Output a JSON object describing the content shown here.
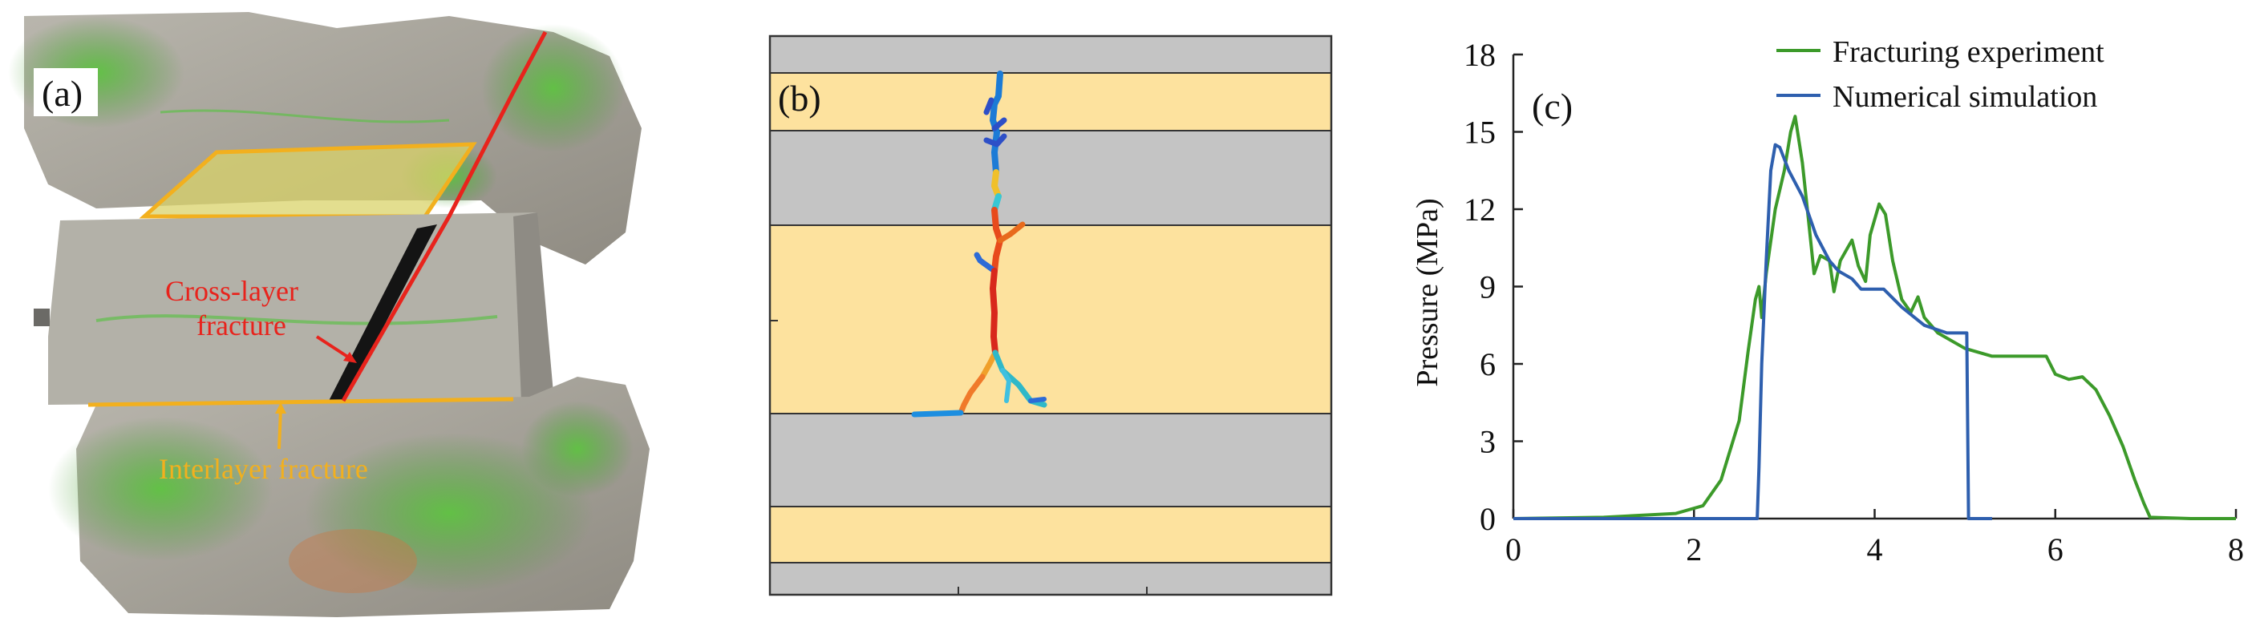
{
  "panel_a": {
    "label": "(a)",
    "annotations": {
      "cross_layer_line1": "Cross-layer",
      "cross_layer_line2": "fracture",
      "interlayer": "Interlayer fracture"
    },
    "colors": {
      "cross_layer": "#e8231c",
      "interlayer": "#f2b01e",
      "rock_green": "#4fae3a",
      "rock_gray": "#a9a79f"
    }
  },
  "panel_b": {
    "label": "(b)",
    "colors": {
      "yellow_layer": "#fde29e",
      "gray_layer": "#c4c4c4",
      "border": "#333333"
    }
  },
  "panel_c": {
    "label": "(c)",
    "chart_data": {
      "type": "line",
      "title": "",
      "xlabel": "",
      "ylabel": "Pressure (MPa)",
      "xlim": [
        0,
        8
      ],
      "ylim": [
        0,
        18
      ],
      "x_ticks": [
        "0",
        "2",
        "4",
        "6",
        "8"
      ],
      "y_ticks": [
        "0",
        "3",
        "6",
        "9",
        "12",
        "15",
        "18"
      ],
      "legend_position": "top-right",
      "series": [
        {
          "name": "Fracturing experiment",
          "color": "#3c9a2a",
          "points": [
            [
              0,
              0
            ],
            [
              1.0,
              0.05
            ],
            [
              1.8,
              0.2
            ],
            [
              2.1,
              0.5
            ],
            [
              2.3,
              1.5
            ],
            [
              2.5,
              3.8
            ],
            [
              2.6,
              6.5
            ],
            [
              2.68,
              8.5
            ],
            [
              2.72,
              9.0
            ],
            [
              2.75,
              7.8
            ],
            [
              2.8,
              9.5
            ],
            [
              2.9,
              12.0
            ],
            [
              3.0,
              13.5
            ],
            [
              3.07,
              15.0
            ],
            [
              3.12,
              15.6
            ],
            [
              3.2,
              13.8
            ],
            [
              3.27,
              11.5
            ],
            [
              3.33,
              9.5
            ],
            [
              3.4,
              10.2
            ],
            [
              3.5,
              10.0
            ],
            [
              3.55,
              8.8
            ],
            [
              3.62,
              10.0
            ],
            [
              3.7,
              10.5
            ],
            [
              3.75,
              10.8
            ],
            [
              3.82,
              9.8
            ],
            [
              3.9,
              9.2
            ],
            [
              3.95,
              11.0
            ],
            [
              4.05,
              12.2
            ],
            [
              4.12,
              11.8
            ],
            [
              4.2,
              10.0
            ],
            [
              4.3,
              8.5
            ],
            [
              4.4,
              8.0
            ],
            [
              4.48,
              8.6
            ],
            [
              4.55,
              7.8
            ],
            [
              4.7,
              7.2
            ],
            [
              5.0,
              6.6
            ],
            [
              5.3,
              6.3
            ],
            [
              5.6,
              6.3
            ],
            [
              5.9,
              6.3
            ],
            [
              6.0,
              5.6
            ],
            [
              6.15,
              5.4
            ],
            [
              6.3,
              5.5
            ],
            [
              6.45,
              5.0
            ],
            [
              6.6,
              4.0
            ],
            [
              6.75,
              2.8
            ],
            [
              6.88,
              1.5
            ],
            [
              6.98,
              0.6
            ],
            [
              7.05,
              0.05
            ],
            [
              7.5,
              0
            ],
            [
              8.0,
              0
            ]
          ]
        },
        {
          "name": "Numerical simulation",
          "color": "#2e5fae",
          "points": [
            [
              0,
              0
            ],
            [
              2.5,
              0
            ],
            [
              2.7,
              0
            ],
            [
              2.72,
              2.0
            ],
            [
              2.75,
              6.0
            ],
            [
              2.8,
              10.0
            ],
            [
              2.85,
              13.5
            ],
            [
              2.9,
              14.5
            ],
            [
              2.95,
              14.4
            ],
            [
              3.05,
              13.5
            ],
            [
              3.2,
              12.5
            ],
            [
              3.35,
              11.0
            ],
            [
              3.5,
              10.0
            ],
            [
              3.6,
              9.6
            ],
            [
              3.75,
              9.3
            ],
            [
              3.85,
              8.9
            ],
            [
              4.1,
              8.9
            ],
            [
              4.3,
              8.2
            ],
            [
              4.55,
              7.5
            ],
            [
              4.8,
              7.2
            ],
            [
              5.02,
              7.2
            ],
            [
              5.04,
              0
            ],
            [
              5.3,
              0
            ]
          ]
        }
      ]
    }
  }
}
